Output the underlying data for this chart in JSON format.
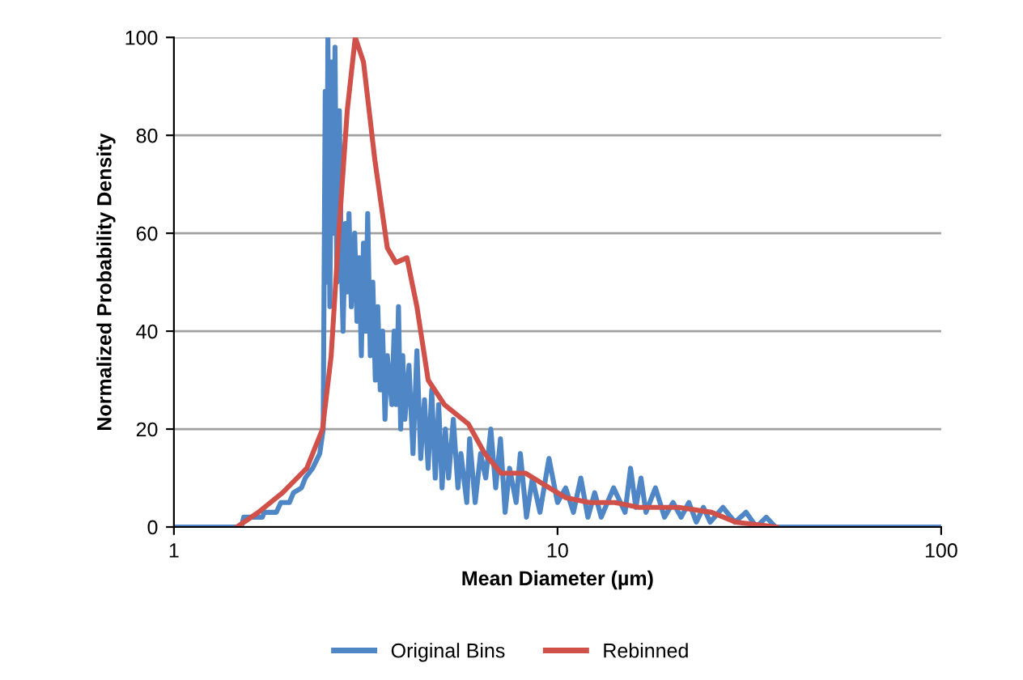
{
  "chart_data": {
    "type": "line",
    "xlabel": "Mean Diameter (µm)",
    "ylabel": "Normalized Probability Density",
    "log": "x",
    "xlim": [
      1,
      100
    ],
    "xticks": [
      1,
      10,
      100
    ],
    "ylim": [
      0,
      100
    ],
    "yticks": [
      0,
      20,
      40,
      60,
      80,
      100
    ],
    "grid": "y",
    "legend": "bottom",
    "marker": "none",
    "line_style": "solid",
    "series": [
      {
        "name": "Original Bins",
        "color": "#4f86c6",
        "x": [
          1,
          1.5,
          1.52,
          1.7,
          1.72,
          1.85,
          1.9,
          2.0,
          2.05,
          2.15,
          2.2,
          2.3,
          2.4,
          2.45,
          2.48,
          2.5,
          2.52,
          2.55,
          2.58,
          2.6,
          2.63,
          2.66,
          2.7,
          2.73,
          2.76,
          2.8,
          2.83,
          2.86,
          2.9,
          2.93,
          2.96,
          3.0,
          3.04,
          3.08,
          3.12,
          3.16,
          3.2,
          3.25,
          3.3,
          3.35,
          3.4,
          3.45,
          3.5,
          3.55,
          3.6,
          3.65,
          3.7,
          3.75,
          3.8,
          3.85,
          3.9,
          3.95,
          4.0,
          4.1,
          4.2,
          4.3,
          4.4,
          4.5,
          4.6,
          4.7,
          4.8,
          4.9,
          5.0,
          5.1,
          5.2,
          5.35,
          5.5,
          5.6,
          5.8,
          5.9,
          6.1,
          6.3,
          6.5,
          6.7,
          6.9,
          7.1,
          7.3,
          7.5,
          7.8,
          8.0,
          8.3,
          8.6,
          9.0,
          9.5,
          10,
          10.5,
          11,
          11.5,
          12,
          12.5,
          13,
          14,
          15,
          15.5,
          16,
          16.5,
          17,
          18,
          19,
          20,
          21,
          22,
          23,
          24,
          25,
          27,
          29,
          31,
          33,
          35,
          37,
          100
        ],
        "values": [
          0,
          0,
          2,
          2,
          3,
          3,
          5,
          5,
          7,
          8,
          10,
          12,
          15,
          20,
          89,
          50,
          100,
          45,
          95,
          60,
          98,
          50,
          85,
          55,
          40,
          62,
          48,
          64,
          45,
          55,
          60,
          42,
          55,
          35,
          58,
          40,
          64,
          35,
          50,
          30,
          45,
          28,
          40,
          22,
          35,
          30,
          25,
          40,
          25,
          45,
          20,
          35,
          22,
          33,
          15,
          36,
          14,
          26,
          12,
          28,
          10,
          25,
          8,
          20,
          10,
          22,
          8,
          15,
          5,
          18,
          5,
          15,
          10,
          20,
          8,
          18,
          3,
          12,
          5,
          15,
          2,
          10,
          3,
          14,
          5,
          8,
          3,
          10,
          2,
          7,
          2,
          8,
          3,
          12,
          4,
          10,
          3,
          8,
          2,
          5,
          2,
          5,
          1,
          4,
          1,
          4,
          1,
          3,
          0,
          2,
          0,
          0
        ]
      },
      {
        "name": "Rebinned",
        "color": "#d0504a",
        "x": [
          1.46,
          1.66,
          1.92,
          2.22,
          2.44,
          2.57,
          2.69,
          2.83,
          2.97,
          3.12,
          3.34,
          3.6,
          3.79,
          4.05,
          4.3,
          4.6,
          5.07,
          5.86,
          6.46,
          7.12,
          8.24,
          9.52,
          10.5,
          12.1,
          14.1,
          16.3,
          20.7,
          25.2,
          29.1,
          37.1
        ],
        "values": [
          0,
          3,
          7,
          12,
          20,
          35,
          60,
          85,
          100,
          95,
          75,
          57,
          54,
          55,
          45,
          30,
          25,
          21,
          15,
          11,
          11,
          8,
          6,
          5,
          5,
          4,
          4,
          3,
          1,
          0
        ]
      }
    ]
  }
}
